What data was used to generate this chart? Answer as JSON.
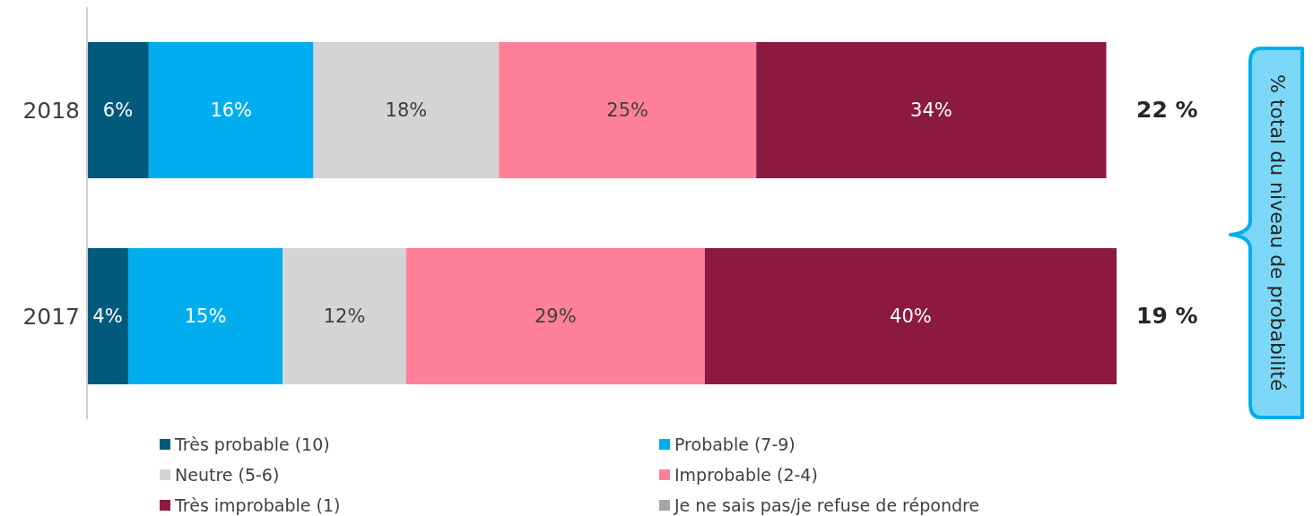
{
  "chart_data": {
    "type": "bar",
    "orientation": "horizontal",
    "stacked": true,
    "categories": [
      "2018",
      "2017"
    ],
    "series": [
      {
        "name": "Très probable (10)",
        "color": "#005a7c",
        "values": [
          6,
          4
        ],
        "value_labels": [
          "6%",
          "4%"
        ]
      },
      {
        "name": "Probable (7-9)",
        "color": "#00aeef",
        "values": [
          16,
          15
        ],
        "value_labels": [
          "16%",
          "15%"
        ]
      },
      {
        "name": "Neutre (5-6)",
        "color": "#d4d4d6",
        "values": [
          18,
          12
        ],
        "value_labels": [
          "18%",
          "12%"
        ]
      },
      {
        "name": "Improbable (2-4)",
        "color": "#ff8098",
        "values": [
          25,
          29
        ],
        "value_labels": [
          "25%",
          "29%"
        ]
      },
      {
        "name": "Très improbable (1)",
        "color": "#8c1a40",
        "values": [
          34,
          40
        ],
        "value_labels": [
          "34%",
          "40%"
        ]
      },
      {
        "name": "Je ne sais pas/je refuse de répondre",
        "color": "#a6a6a6",
        "values": [
          null,
          null
        ]
      }
    ],
    "annotations": [
      "22 %",
      "19 %",
      "% total du niveau de probabilité"
    ],
    "tick_labels": "y",
    "legend": "bottom"
  }
}
